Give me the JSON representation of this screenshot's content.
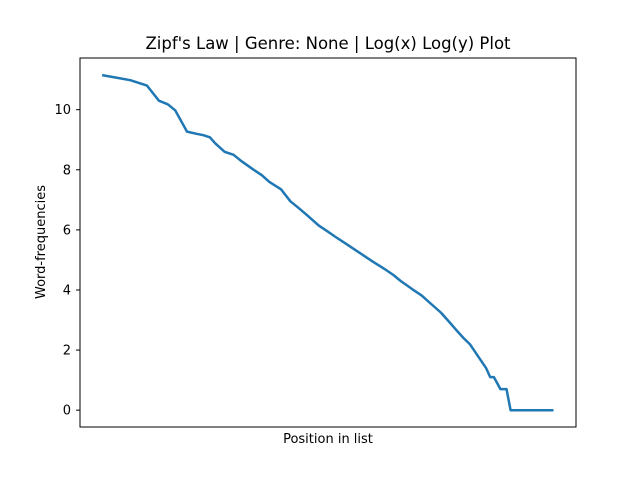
{
  "chart_data": {
    "type": "line",
    "title": "Zipf's Law | Genre: None | Log(x) Log(y) Plot",
    "xlabel": "Position in list",
    "ylabel": "Word-frequencies",
    "x_ticks_visible": false,
    "x_scale": "log (natural log of rank)",
    "ylim": [
      -0.56,
      11.72
    ],
    "xlim": [
      -0.54,
      11.6
    ],
    "y_ticks": [
      0,
      2,
      4,
      6,
      8,
      10
    ],
    "grid": false,
    "legend": "none",
    "color": "#1f77b4",
    "series": [
      {
        "x": [
          0.0,
          0.69,
          1.1,
          1.39,
          1.61,
          1.79,
          2.08,
          2.3,
          2.48,
          2.64,
          2.77,
          3.0,
          3.22,
          3.4,
          3.69,
          3.91,
          4.09,
          4.38,
          4.61,
          4.79,
          5.01,
          5.3,
          5.52,
          5.7,
          5.99,
          6.21,
          6.4,
          6.62,
          6.91,
          7.13,
          7.31,
          7.6,
          7.82,
          8.0,
          8.29,
          8.52,
          8.7,
          8.85,
          9.0,
          9.1,
          9.2,
          9.3,
          9.4,
          9.5,
          9.59,
          9.75,
          9.9,
          10.0,
          10.28,
          10.7,
          11.05
        ],
        "y": [
          11.15,
          10.98,
          10.8,
          10.3,
          10.18,
          9.98,
          9.27,
          9.2,
          9.15,
          9.08,
          8.88,
          8.6,
          8.5,
          8.3,
          8.02,
          7.82,
          7.6,
          7.35,
          6.95,
          6.75,
          6.5,
          6.15,
          5.95,
          5.78,
          5.52,
          5.32,
          5.15,
          4.95,
          4.7,
          4.5,
          4.3,
          4.02,
          3.82,
          3.6,
          3.25,
          2.9,
          2.62,
          2.4,
          2.2,
          2.0,
          1.8,
          1.6,
          1.4,
          1.1,
          1.1,
          0.7,
          0.7,
          0.0,
          0.0,
          0.0,
          0.0
        ]
      }
    ]
  }
}
